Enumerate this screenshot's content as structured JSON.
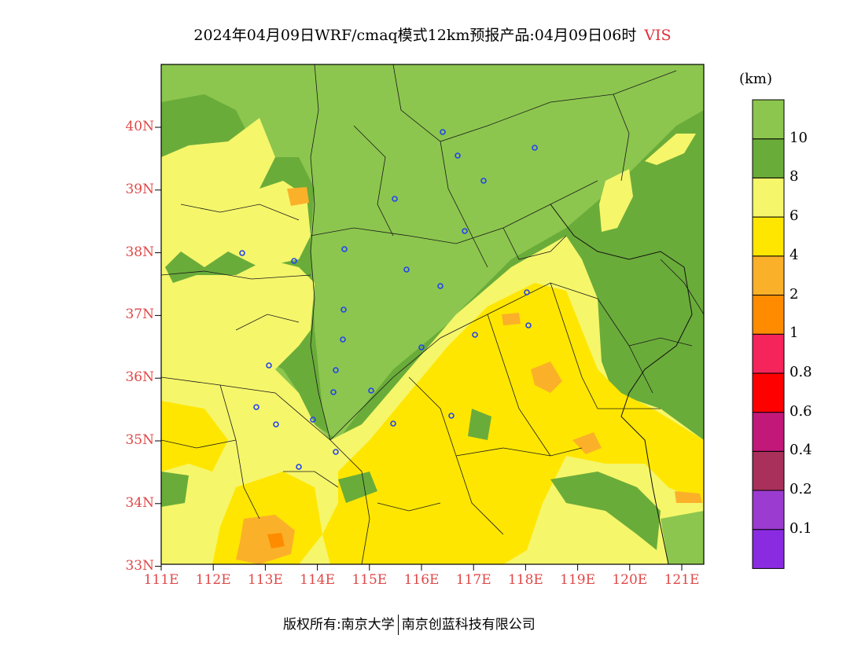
{
  "title": {
    "main": "2024年04月09日WRF/cmaq模式12km预报产品:04月09日06时",
    "variable": "VIS"
  },
  "unit": "(km)",
  "footer": {
    "left": "版权所有:南京大学",
    "right": "南京创蓝科技有限公司"
  },
  "y_ticks": [
    "40N",
    "39N",
    "38N",
    "37N",
    "36N",
    "35N",
    "34N",
    "33N"
  ],
  "x_ticks": [
    "111E",
    "112E",
    "113E",
    "114E",
    "115E",
    "116E",
    "117E",
    "118E",
    "119E",
    "120E",
    "121E"
  ],
  "colorbar": {
    "colors": [
      "#8a2be2",
      "#9b3bd0",
      "#a8305a",
      "#c2187a",
      "#ff0000",
      "#f5245a",
      "#ff8c00",
      "#fbb02a",
      "#ffe600",
      "#f5f66a",
      "#6aac3a",
      "#8cc64e"
    ],
    "labels": [
      "0.1",
      "0.2",
      "0.4",
      "0.6",
      "0.8",
      "1",
      "2",
      "4",
      "6",
      "8",
      "10"
    ]
  },
  "colors": {
    "vis_over_10": "#8cc64e",
    "vis_8_10": "#6aac3a",
    "vis_6_8": "#f5f66a",
    "vis_4_6": "#ffe600",
    "vis_2_4": "#fbb02a",
    "vis_1_2": "#ff8c00",
    "tick_color": "#e04848",
    "station_color": "#2244ee"
  }
}
